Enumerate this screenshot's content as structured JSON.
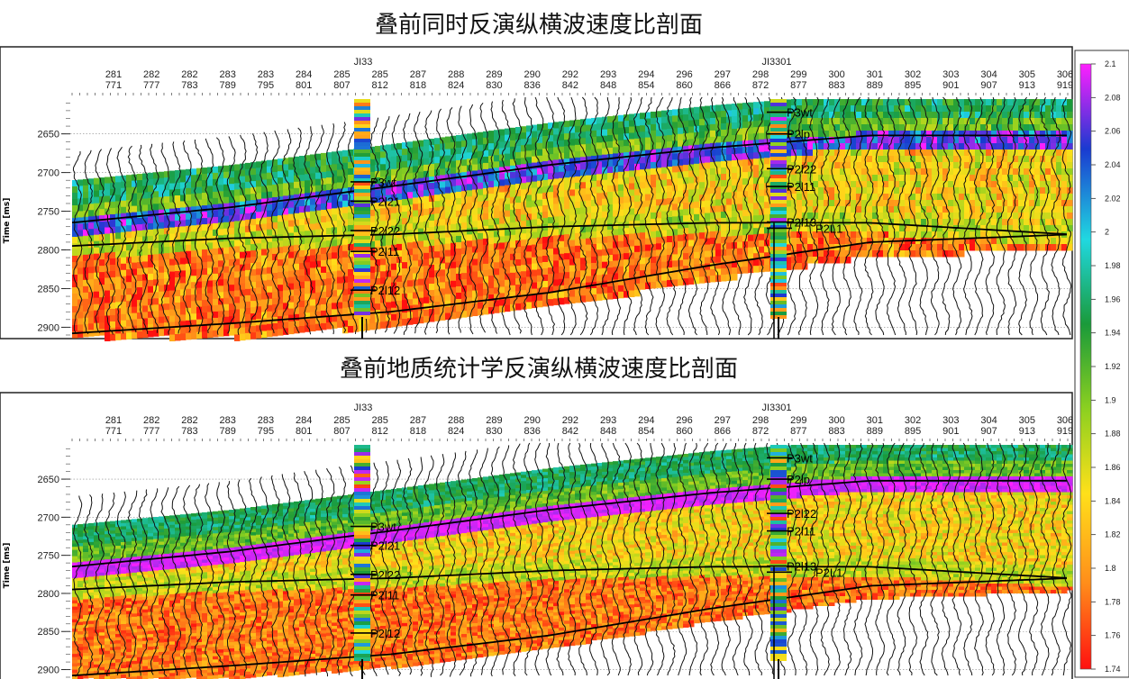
{
  "chart_data": [
    {
      "type": "heatmap",
      "title": "叠前同时反演纵横波速度比剖面",
      "ylabel": "Time [ms]",
      "y_ticks": [
        2650,
        2700,
        2750,
        2800,
        2850,
        2900
      ],
      "ylim": [
        2605,
        2910
      ],
      "x_ticks_row1": [
        "281",
        "282",
        "282",
        "283",
        "283",
        "284",
        "285",
        "285",
        "287",
        "288",
        "289",
        "290",
        "292",
        "293",
        "294",
        "296",
        "297",
        "298",
        "299",
        "300",
        "301",
        "302",
        "303",
        "304",
        "305",
        "306"
      ],
      "x_ticks_row2": [
        "771",
        "777",
        "783",
        "789",
        "795",
        "801",
        "807",
        "812",
        "818",
        "824",
        "830",
        "836",
        "842",
        "848",
        "854",
        "860",
        "866",
        "872",
        "877",
        "883",
        "889",
        "895",
        "901",
        "907",
        "913",
        "919"
      ],
      "wells": [
        "JI33",
        "JI3301"
      ],
      "well_markers": {
        "JI33": [
          "P3wt",
          "P2l21",
          "P2l22",
          "P2l11",
          "P2l12"
        ],
        "JI3301": [
          "P3wt",
          "P2lp",
          "P2l22",
          "P2l11",
          "P2l13",
          "P2L1"
        ]
      },
      "horizons_ms": {
        "x_trace": [
          0,
          4,
          8,
          12,
          16,
          20,
          25
        ],
        "top": [
          2765,
          2745,
          2718,
          2690,
          2668,
          2652,
          2652
        ],
        "middle": [
          2795,
          2785,
          2780,
          2770,
          2765,
          2765,
          2780
        ],
        "base": [
          2908,
          2895,
          2880,
          2855,
          2820,
          2790,
          2780
        ]
      }
    },
    {
      "type": "heatmap",
      "title": "叠前地质统计学反演纵横波速度比剖面",
      "ylabel": "Time [ms]",
      "y_ticks": [
        2650,
        2700,
        2750,
        2800,
        2850,
        2900
      ],
      "ylim": [
        2605,
        2910
      ],
      "x_ticks_row1": [
        "281",
        "282",
        "282",
        "283",
        "283",
        "284",
        "285",
        "285",
        "287",
        "288",
        "289",
        "290",
        "292",
        "293",
        "294",
        "296",
        "297",
        "298",
        "299",
        "300",
        "301",
        "302",
        "303",
        "304",
        "305",
        "306"
      ],
      "x_ticks_row2": [
        "771",
        "777",
        "783",
        "789",
        "795",
        "801",
        "807",
        "812",
        "818",
        "824",
        "830",
        "836",
        "842",
        "848",
        "854",
        "860",
        "866",
        "872",
        "877",
        "883",
        "889",
        "895",
        "901",
        "907",
        "913",
        "919"
      ],
      "wells": [
        "JI33",
        "JI3301"
      ],
      "well_markers": {
        "JI33": [
          "P3wt",
          "P2l21",
          "P2l22",
          "P2l11",
          "P2l12"
        ],
        "JI3301": [
          "P3wt",
          "P2lp",
          "P2l22",
          "P2l11",
          "P2l13",
          "P2L1"
        ]
      }
    }
  ],
  "colorbar": {
    "range": [
      1.74,
      2.1
    ],
    "ticks": [
      "2.1",
      "2.08",
      "2.06",
      "2.04",
      "2.02",
      "2",
      "1.98",
      "1.96",
      "1.94",
      "1.92",
      "1.9",
      "1.88",
      "1.86",
      "1.84",
      "1.82",
      "1.8",
      "1.78",
      "1.76",
      "1.74"
    ],
    "colors": [
      "#ff1010",
      "#ff8c1a",
      "#ffe01a",
      "#8cd020",
      "#1a9a3a",
      "#20d8e0",
      "#1a3ad0",
      "#ff20ff"
    ]
  }
}
